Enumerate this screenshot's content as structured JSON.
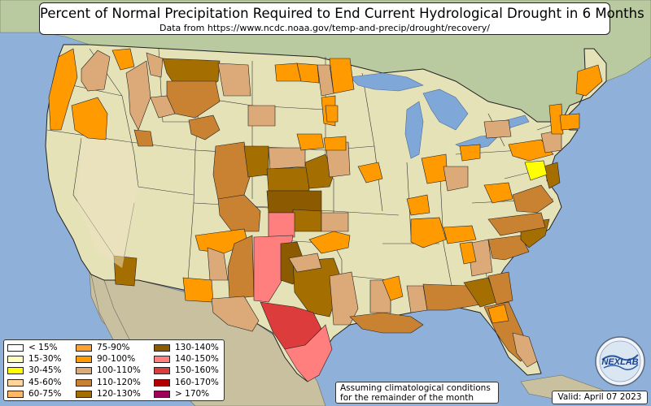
{
  "title": "Percent of Normal Precipitation Required to End Current Hydrological Drought in 6 Months",
  "subtitle": "Data from https://www.ncdc.noaa.gov/temp-and-precip/drought/recovery/",
  "legend": [
    {
      "label": "< 15%",
      "color": "#ffffff"
    },
    {
      "label": "15-30%",
      "color": "#ffffbe"
    },
    {
      "label": "30-45%",
      "color": "#ffff00"
    },
    {
      "label": "45-60%",
      "color": "#ffd59b"
    },
    {
      "label": "60-75%",
      "color": "#ffb865"
    },
    {
      "label": "75-90%",
      "color": "#ffa033"
    },
    {
      "label": "90-100%",
      "color": "#ff9a00"
    },
    {
      "label": "100-110%",
      "color": "#dcaa78"
    },
    {
      "label": "110-120%",
      "color": "#c88232"
    },
    {
      "label": "120-130%",
      "color": "#a56e00"
    },
    {
      "label": "130-140%",
      "color": "#8c5a00"
    },
    {
      "label": "140-150%",
      "color": "#ff7f7f"
    },
    {
      "label": "150-160%",
      "color": "#dc3c3c"
    },
    {
      "label": "160-170%",
      "color": "#b40000"
    },
    {
      "label": "> 170%",
      "color": "#a0005a"
    }
  ],
  "note": {
    "line1": "Assuming climatological conditions",
    "line2": "for the remainder of the month"
  },
  "valid": "Valid: April 07 2023",
  "logo": {
    "icon": "nexlab-logo",
    "text": "NEXLAB"
  }
}
